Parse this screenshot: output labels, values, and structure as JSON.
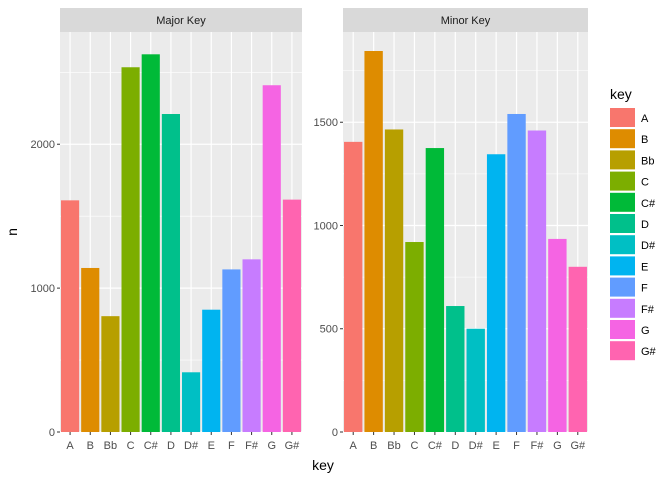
{
  "chart_data": {
    "type": "bar",
    "xlabel": "key",
    "ylabel": "n",
    "legend": {
      "title": "key",
      "placement": "right"
    },
    "categories": [
      "A",
      "B",
      "Bb",
      "C",
      "C#",
      "D",
      "D#",
      "E",
      "F",
      "F#",
      "G",
      "G#"
    ],
    "colors": [
      "#F8766D",
      "#DE8C00",
      "#B79F00",
      "#7CAE00",
      "#00BA38",
      "#00C08B",
      "#00BFC4",
      "#00B4F0",
      "#619CFF",
      "#C77CFF",
      "#F564E3",
      "#FF64B0"
    ],
    "grid": true,
    "panels": [
      {
        "title": "Major Key",
        "values": [
          1610,
          1140,
          805,
          2535,
          2625,
          2210,
          415,
          850,
          1130,
          1200,
          2410,
          1615
        ],
        "ylim": [
          0,
          2780
        ],
        "yticks": [
          0,
          1000,
          2000
        ],
        "ytick_labels": [
          "0",
          "1000",
          "2000"
        ]
      },
      {
        "title": "Minor Key",
        "values": [
          1405,
          1845,
          1465,
          920,
          1375,
          610,
          500,
          1345,
          1540,
          1460,
          935,
          800
        ],
        "ylim": [
          0,
          1937
        ],
        "yticks": [
          0,
          500,
          1000,
          1500
        ],
        "ytick_labels": [
          "0",
          "500",
          "1000",
          "1500"
        ]
      }
    ]
  }
}
